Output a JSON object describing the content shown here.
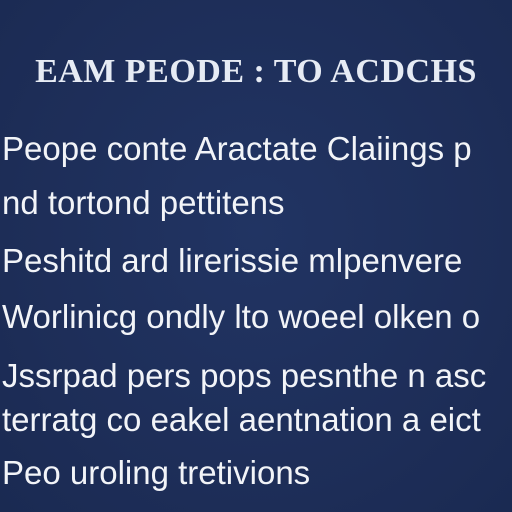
{
  "slide": {
    "title": "EAM PEODE : TO ACDCHS",
    "lines": [
      "Peope conte Aractate Claiings p",
      "nd tortond pettitens",
      "Peshitd ard lirerissie mlpenvere",
      "Worlinicg ondly lto woeel olken o",
      "Jssrpad pers pops pesnthe n asc",
      "terratg co eakel aentnation a eict",
      "Peo uroling tretivions"
    ],
    "colors": {
      "background": "#1e2f5a",
      "text": "#f2f4f8"
    }
  }
}
